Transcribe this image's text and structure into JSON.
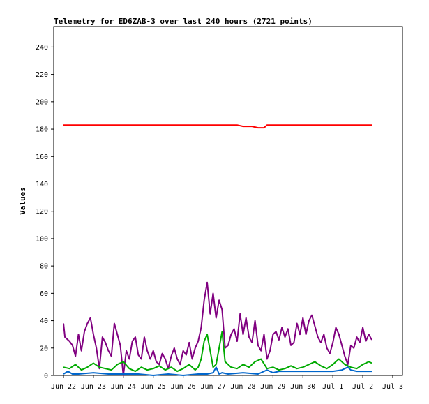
{
  "chart_data": {
    "type": "line",
    "title": "Telemetry for ED6ZAB-3 over last 240 hours (2721 points)",
    "xlabel": "",
    "ylabel": "Values",
    "ylim": [
      0,
      255
    ],
    "y_ticks": [
      0,
      20,
      40,
      60,
      80,
      100,
      120,
      140,
      160,
      180,
      200,
      220,
      240
    ],
    "x_range": [
      0,
      11
    ],
    "x_ticks": [
      {
        "x": 0,
        "label": "Jun 22"
      },
      {
        "x": 1,
        "label": "Jun 23"
      },
      {
        "x": 2,
        "label": "Jun 24"
      },
      {
        "x": 3,
        "label": "Jun 25"
      },
      {
        "x": 4,
        "label": "Jun 26"
      },
      {
        "x": 5,
        "label": "Jun 27"
      },
      {
        "x": 6,
        "label": "Jun 28"
      },
      {
        "x": 7,
        "label": "Jun 29"
      },
      {
        "x": 8,
        "label": "Jun 30"
      },
      {
        "x": 9,
        "label": "Jul 1"
      },
      {
        "x": 10,
        "label": "Jul 2"
      },
      {
        "x": 11,
        "label": "Jul 3"
      }
    ],
    "grid": false,
    "legend": "none",
    "series": [
      {
        "color": "#ff0000",
        "x": [
          0.0,
          0.5,
          1.0,
          1.5,
          2.0,
          2.5,
          3.0,
          3.5,
          4.0,
          4.5,
          5.0,
          5.5,
          5.8,
          6.0,
          6.3,
          6.5,
          6.7,
          6.8,
          7.0,
          7.5,
          8.0,
          8.5,
          9.0,
          9.5,
          10.0,
          10.3
        ],
        "values": [
          183,
          183,
          183,
          183,
          183,
          183,
          183,
          183,
          183,
          183,
          183,
          183,
          183,
          182,
          182,
          181,
          181,
          183,
          183,
          183,
          183,
          183,
          183,
          183,
          183,
          183
        ]
      },
      {
        "color": "#800080",
        "x": [
          0.0,
          0.05,
          0.2,
          0.3,
          0.4,
          0.5,
          0.6,
          0.7,
          0.8,
          0.9,
          1.0,
          1.1,
          1.2,
          1.3,
          1.4,
          1.5,
          1.6,
          1.7,
          1.8,
          1.9,
          2.0,
          2.1,
          2.2,
          2.3,
          2.4,
          2.5,
          2.6,
          2.7,
          2.8,
          2.9,
          3.0,
          3.1,
          3.2,
          3.3,
          3.4,
          3.5,
          3.6,
          3.7,
          3.8,
          3.9,
          4.0,
          4.1,
          4.2,
          4.3,
          4.4,
          4.5,
          4.6,
          4.7,
          4.8,
          4.9,
          5.0,
          5.1,
          5.2,
          5.3,
          5.4,
          5.5,
          5.6,
          5.7,
          5.8,
          5.9,
          6.0,
          6.1,
          6.2,
          6.3,
          6.4,
          6.5,
          6.6,
          6.7,
          6.8,
          6.9,
          7.0,
          7.1,
          7.2,
          7.3,
          7.4,
          7.5,
          7.6,
          7.7,
          7.8,
          7.9,
          8.0,
          8.1,
          8.2,
          8.3,
          8.4,
          8.5,
          8.6,
          8.7,
          8.8,
          8.9,
          9.0,
          9.1,
          9.2,
          9.3,
          9.4,
          9.5,
          9.6,
          9.7,
          9.8,
          9.9,
          10.0,
          10.1,
          10.2,
          10.3
        ],
        "values": [
          38,
          28,
          25,
          22,
          14,
          30,
          18,
          32,
          38,
          42,
          30,
          20,
          5,
          28,
          24,
          18,
          14,
          38,
          30,
          22,
          0,
          18,
          12,
          25,
          28,
          15,
          12,
          28,
          18,
          12,
          18,
          10,
          8,
          16,
          12,
          5,
          14,
          20,
          12,
          8,
          18,
          15,
          24,
          12,
          20,
          25,
          35,
          55,
          68,
          45,
          60,
          42,
          55,
          48,
          20,
          22,
          30,
          34,
          25,
          45,
          30,
          42,
          28,
          24,
          40,
          22,
          18,
          30,
          12,
          18,
          30,
          32,
          26,
          35,
          28,
          34,
          22,
          24,
          38,
          30,
          42,
          30,
          40,
          44,
          36,
          28,
          24,
          30,
          20,
          16,
          24,
          35,
          30,
          22,
          14,
          8,
          22,
          20,
          28,
          24,
          35,
          25,
          30,
          26
        ]
      },
      {
        "color": "#00aa00",
        "x": [
          0.0,
          0.2,
          0.4,
          0.6,
          0.8,
          1.0,
          1.2,
          1.4,
          1.6,
          1.8,
          2.0,
          2.2,
          2.4,
          2.6,
          2.8,
          3.0,
          3.2,
          3.4,
          3.6,
          3.8,
          4.0,
          4.2,
          4.4,
          4.5,
          4.6,
          4.7,
          4.8,
          4.9,
          5.0,
          5.1,
          5.2,
          5.3,
          5.4,
          5.6,
          5.8,
          6.0,
          6.2,
          6.4,
          6.6,
          6.8,
          7.0,
          7.2,
          7.4,
          7.6,
          7.8,
          8.0,
          8.2,
          8.4,
          8.6,
          8.8,
          9.0,
          9.2,
          9.4,
          9.6,
          9.8,
          10.0,
          10.2,
          10.3
        ],
        "values": [
          6,
          5,
          8,
          4,
          6,
          9,
          6,
          5,
          4,
          8,
          10,
          5,
          3,
          6,
          4,
          5,
          7,
          4,
          6,
          3,
          5,
          8,
          4,
          6,
          12,
          25,
          30,
          18,
          6,
          8,
          20,
          32,
          10,
          6,
          5,
          8,
          6,
          10,
          12,
          5,
          6,
          4,
          5,
          7,
          5,
          6,
          8,
          10,
          7,
          5,
          8,
          12,
          8,
          6,
          5,
          8,
          10,
          9
        ]
      },
      {
        "color": "#0066cc",
        "x": [
          0.0,
          0.15,
          0.3,
          0.5,
          1.0,
          1.5,
          2.0,
          2.5,
          3.0,
          3.5,
          4.0,
          4.5,
          4.8,
          5.0,
          5.1,
          5.2,
          5.3,
          5.5,
          6.0,
          6.5,
          6.8,
          7.0,
          7.2,
          7.5,
          8.0,
          8.5,
          9.0,
          9.3,
          9.5,
          9.6,
          9.8,
          10.0,
          10.3
        ],
        "values": [
          1,
          3,
          1,
          1,
          2,
          1,
          1,
          1,
          0,
          1,
          0,
          1,
          1,
          2,
          6,
          1,
          2,
          1,
          2,
          1,
          4,
          2,
          3,
          3,
          3,
          3,
          3,
          4,
          6,
          4,
          3,
          3,
          3
        ]
      }
    ]
  }
}
